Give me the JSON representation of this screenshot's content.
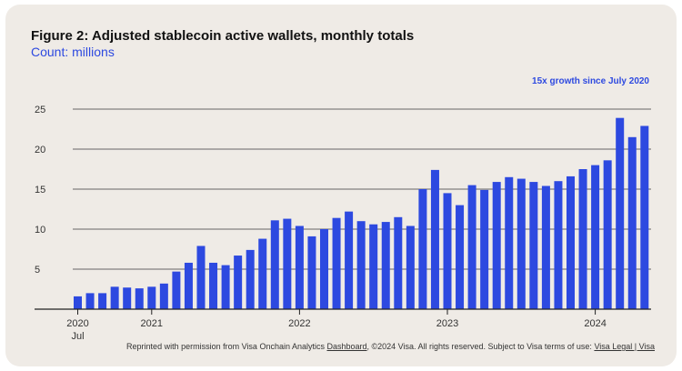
{
  "title": "Figure 2: Adjusted stablecoin active wallets, monthly totals",
  "subtitle": "Count: millions",
  "annotation": "15x growth since July 2020",
  "footer": {
    "prefix": "Reprinted with permission from Visa Onchain Analytics ",
    "link1": "Dashboard",
    "middle": ", ©2024 Visa.  All rights reserved. Subject to Visa terms of use: ",
    "link2": "Visa Legal | Visa"
  },
  "colors": {
    "bar": "#2d49e0",
    "grid": "#3a3a3a",
    "axis": "#222222",
    "background": "#efebe6"
  },
  "chart_data": {
    "type": "bar",
    "title": "Figure 2: Adjusted stablecoin active wallets, monthly totals",
    "subtitle": "Count: millions",
    "xlabel": "",
    "ylabel": "",
    "ylim": [
      0,
      25
    ],
    "yticks": [
      5,
      10,
      15,
      20,
      25
    ],
    "grid": true,
    "x_tick_labels": [
      {
        "index": 0,
        "label": "2020",
        "sublabel": "Jul"
      },
      {
        "index": 6,
        "label": "2021"
      },
      {
        "index": 18,
        "label": "2022"
      },
      {
        "index": 30,
        "label": "2023"
      },
      {
        "index": 42,
        "label": "2024"
      }
    ],
    "categories": [
      "2020-07",
      "2020-08",
      "2020-09",
      "2020-10",
      "2020-11",
      "2020-12",
      "2021-01",
      "2021-02",
      "2021-03",
      "2021-04",
      "2021-05",
      "2021-06",
      "2021-07",
      "2021-08",
      "2021-09",
      "2021-10",
      "2021-11",
      "2021-12",
      "2022-01",
      "2022-02",
      "2022-03",
      "2022-04",
      "2022-05",
      "2022-06",
      "2022-07",
      "2022-08",
      "2022-09",
      "2022-10",
      "2022-11",
      "2022-12",
      "2023-01",
      "2023-02",
      "2023-03",
      "2023-04",
      "2023-05",
      "2023-06",
      "2023-07",
      "2023-08",
      "2023-09",
      "2023-10",
      "2023-11",
      "2023-12",
      "2024-01",
      "2024-02",
      "2024-03",
      "2024-04",
      "2024-05"
    ],
    "values": [
      1.6,
      2.0,
      2.0,
      2.8,
      2.7,
      2.6,
      2.8,
      3.2,
      4.7,
      5.8,
      7.9,
      5.8,
      5.5,
      6.7,
      7.4,
      8.8,
      11.1,
      11.3,
      10.4,
      9.1,
      10.0,
      11.4,
      12.2,
      11.0,
      10.6,
      10.9,
      11.5,
      10.4,
      15.0,
      17.4,
      14.5,
      13.0,
      15.5,
      14.9,
      15.9,
      16.5,
      16.3,
      15.9,
      15.4,
      16.0,
      16.6,
      17.5,
      18.0,
      18.6,
      23.9,
      21.5,
      22.9
    ]
  }
}
